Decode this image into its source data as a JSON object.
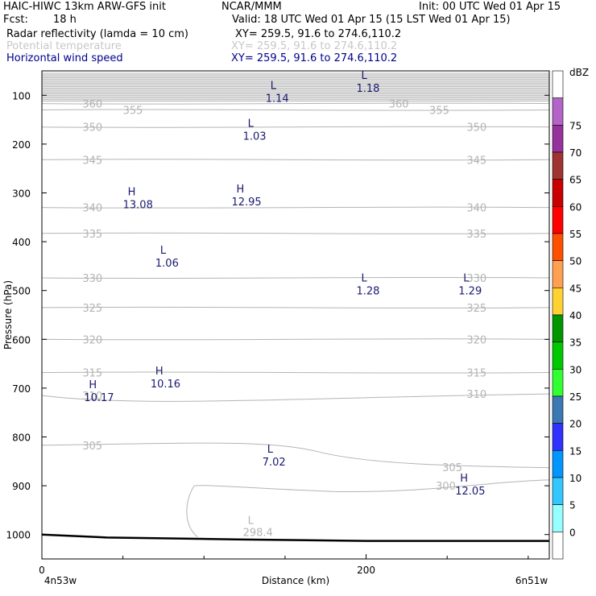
{
  "header": {
    "title": "HAIC-HIWC 13km ARW-GFS init",
    "center": "NCAR/MMM",
    "init": "Init: 00 UTC Wed 01 Apr 15",
    "fcst_label": "Fcst:",
    "fcst_value": "18 h",
    "valid": "Valid: 18 UTC Wed 01 Apr 15 (15 LST Wed 01 Apr 15)",
    "fields": [
      {
        "name": "Radar reflectivity (lamda = 10 cm)",
        "xy": "XY= 259.5, 91.6 to 274.6,110.2",
        "color": "#000000"
      },
      {
        "name": "Potential temperature",
        "xy": "XY= 259.5, 91.6 to 274.6,110.2",
        "color": "#c8c8c8"
      },
      {
        "name": "Horizontal wind speed",
        "xy": "XY= 259.5, 91.6 to 274.6,110.2",
        "color": "#00008c"
      }
    ]
  },
  "colors": {
    "theta": "#b4b4b4",
    "wind": "#191970",
    "terrain": "#000000"
  },
  "chart_data": {
    "type": "cross-section",
    "xlabel": "Distance (km)",
    "ylabel": "Pressure (hPa)",
    "xlim": [
      0,
      313
    ],
    "ylim": [
      1050,
      50
    ],
    "x_ticks": [
      0,
      200
    ],
    "y_ticks": [
      100,
      200,
      300,
      400,
      500,
      600,
      700,
      800,
      900,
      1000
    ],
    "x_start_label": "4n53w",
    "x_end_label": "6n51w",
    "theta_contours": [
      {
        "level": 360,
        "label": "360",
        "pressure": 117
      },
      {
        "level": 355,
        "label": "355",
        "pressure": 130
      },
      {
        "level": 350,
        "label": "350",
        "pressure": 165
      },
      {
        "level": 345,
        "label": "345",
        "pressure": 232
      },
      {
        "level": 340,
        "label": "340",
        "pressure": 330
      },
      {
        "level": 335,
        "label": "335",
        "pressure": 383
      },
      {
        "level": 330,
        "label": "330",
        "pressure": 474
      },
      {
        "level": 325,
        "label": "325",
        "pressure": 535
      },
      {
        "level": 320,
        "label": "320",
        "pressure": 600
      },
      {
        "level": 315,
        "label": "315",
        "pressure": 668
      },
      {
        "level": 310,
        "label": "310",
        "pressure": 715
      },
      {
        "level": 305,
        "label": "305",
        "pressure": 817
      },
      {
        "level": 300,
        "label": "300",
        "pressure": 900
      },
      {
        "level": 298.4,
        "label": "298.4",
        "pressure": 1000
      }
    ],
    "theta_extrema": [
      {
        "type": "L",
        "value": "298.4",
        "x": 124,
        "p": 995
      }
    ],
    "wind_extrema": [
      {
        "type": "L",
        "value": "1.14",
        "x": 138,
        "p": 100
      },
      {
        "type": "L",
        "value": "1.18",
        "x": 194,
        "p": 80
      },
      {
        "type": "L",
        "value": "1.03",
        "x": 124,
        "p": 178
      },
      {
        "type": "H",
        "value": "13.08",
        "x": 50,
        "p": 318
      },
      {
        "type": "H",
        "value": "12.95",
        "x": 117,
        "p": 312
      },
      {
        "type": "L",
        "value": "1.06",
        "x": 70,
        "p": 438
      },
      {
        "type": "L",
        "value": "1.28",
        "x": 194,
        "p": 495
      },
      {
        "type": "L",
        "value": "1.29",
        "x": 257,
        "p": 495
      },
      {
        "type": "H",
        "value": "10.16",
        "x": 67,
        "p": 685
      },
      {
        "type": "H",
        "value": "10.17",
        "x": 26,
        "p": 713
      },
      {
        "type": "L",
        "value": "7.02",
        "x": 136,
        "p": 845
      },
      {
        "type": "H",
        "value": "12.05",
        "x": 255,
        "p": 905
      }
    ],
    "terrain": {
      "x": [
        0,
        40,
        120,
        200,
        313
      ],
      "p": [
        1000,
        1006,
        1010,
        1013,
        1013
      ]
    },
    "colorbar": {
      "title": "dBZ",
      "levels": [
        0,
        5,
        10,
        15,
        20,
        25,
        30,
        35,
        40,
        45,
        50,
        55,
        60,
        65,
        70,
        75
      ],
      "colors": [
        "#ffffff",
        "#96ffff",
        "#32c8ff",
        "#0096ff",
        "#3232ff",
        "#3c78b4",
        "#32ff32",
        "#00c800",
        "#009600",
        "#ffd232",
        "#ffa050",
        "#ff5000",
        "#ff0000",
        "#c80000",
        "#a03232",
        "#96329b",
        "#b464c8",
        "#ffffff"
      ]
    }
  }
}
